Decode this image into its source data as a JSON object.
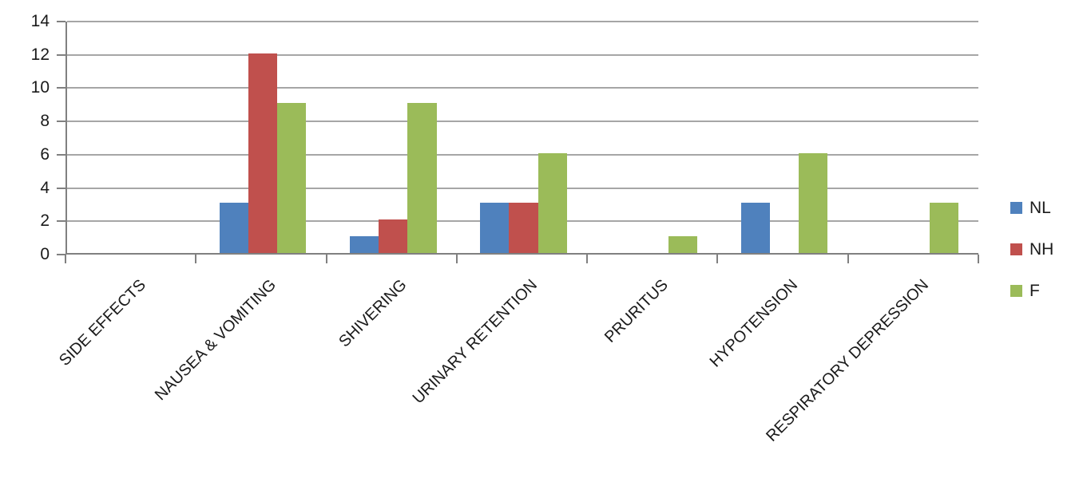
{
  "chart_data": {
    "type": "bar",
    "title": "",
    "xlabel": "",
    "ylabel": "",
    "categories": [
      "SIDE EFFECTS",
      "NAUSEA & VOMITING",
      "SHIVERING",
      "URINARY RETENTION",
      "PRURITUS",
      "HYPOTENSION",
      "RESPIRATORY DEPRESSION"
    ],
    "series": [
      {
        "name": "NL",
        "color": "#4F81BD",
        "values": [
          0,
          3,
          1,
          3,
          0,
          3,
          0
        ]
      },
      {
        "name": "NH",
        "color": "#C0504D",
        "values": [
          0,
          12,
          2,
          3,
          0,
          0,
          0
        ]
      },
      {
        "name": "F",
        "color": "#9BBB59",
        "values": [
          0,
          9,
          9,
          6,
          1,
          6,
          3
        ]
      }
    ],
    "ylim": [
      0,
      14
    ],
    "yticks": [
      0,
      2,
      4,
      6,
      8,
      10,
      12,
      14
    ],
    "grid": "horizontal",
    "legend_position": "right",
    "x_label_rotation_deg": -45
  },
  "colors": {
    "background": "#FFFFFF",
    "gridline": "#A6A6A6",
    "axis": "#808080",
    "text": "#1A1A1A"
  }
}
